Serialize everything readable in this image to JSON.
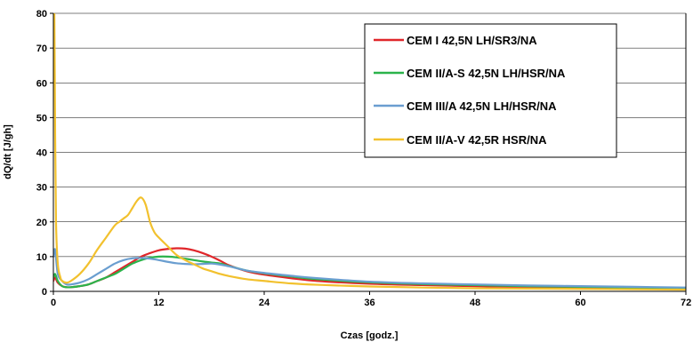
{
  "chart_data": {
    "type": "line",
    "xlabel": "Czas [godz.]",
    "ylabel": "dQ/dt [J/gh]",
    "xlim": [
      0,
      72
    ],
    "ylim": [
      0,
      80
    ],
    "xticks": [
      0,
      12,
      24,
      36,
      48,
      60,
      72
    ],
    "yticks": [
      0,
      10,
      20,
      30,
      40,
      50,
      60,
      70,
      80
    ],
    "grid": "horizontal",
    "legend_position": "top-right",
    "series": [
      {
        "name": "CEM I 42,5N LH/SR3/NA",
        "color": "#e0262a",
        "x": [
          0,
          0.2,
          0.5,
          1,
          1.5,
          2,
          3,
          4,
          5,
          6,
          7,
          8,
          9,
          10,
          11,
          12,
          13,
          14,
          15,
          16,
          17,
          18,
          19,
          20,
          22,
          24,
          27,
          30,
          36,
          42,
          48,
          54,
          60,
          66,
          72
        ],
        "y": [
          3,
          4,
          2.5,
          1.5,
          1.2,
          1.2,
          1.5,
          2,
          3,
          4,
          5.5,
          7,
          8.5,
          10,
          11,
          11.8,
          12.2,
          12.4,
          12.3,
          11.8,
          11,
          10,
          8.8,
          7.5,
          5.8,
          4.8,
          3.8,
          3,
          2.2,
          1.8,
          1.5,
          1.2,
          1,
          0.9,
          0.8
        ]
      },
      {
        "name": "CEM II/A-S 42,5N LH/HSR/NA",
        "color": "#2bb34b",
        "x": [
          0,
          0.2,
          0.5,
          1,
          1.5,
          2,
          3,
          4,
          5,
          6,
          7,
          8,
          9,
          10,
          11,
          12,
          13,
          14,
          15,
          16,
          17,
          18,
          19,
          20,
          22,
          24,
          27,
          30,
          36,
          42,
          48,
          54,
          60,
          66,
          72
        ],
        "y": [
          4,
          5,
          3,
          1.5,
          1.2,
          1.2,
          1.5,
          2,
          3,
          4,
          5,
          6.5,
          8,
          9,
          9.7,
          10,
          10,
          9.8,
          9.4,
          9,
          8.6,
          8.3,
          8,
          7.3,
          6,
          5.2,
          4.3,
          3.5,
          2.6,
          2.1,
          1.8,
          1.5,
          1.3,
          1.1,
          1
        ]
      },
      {
        "name": "CEM III/A 42,5N LH/HSR/NA",
        "color": "#6a9ed0",
        "x": [
          0,
          0.2,
          0.5,
          1,
          1.5,
          2,
          3,
          4,
          5,
          6,
          7,
          8,
          9,
          10,
          11,
          12,
          13,
          14,
          15,
          16,
          17,
          18,
          19,
          20,
          22,
          24,
          27,
          30,
          36,
          42,
          48,
          54,
          60,
          66,
          72
        ],
        "y": [
          10,
          12,
          5,
          3,
          2,
          2,
          2.5,
          3.5,
          5,
          6.5,
          8,
          9,
          9.5,
          9.6,
          9.4,
          9,
          8.5,
          8.1,
          7.9,
          7.8,
          7.9,
          8,
          7.7,
          7.2,
          6,
          5.3,
          4.5,
          3.8,
          2.8,
          2.3,
          2,
          1.7,
          1.5,
          1.3,
          1.1
        ]
      },
      {
        "name": "CEM II/A-V 42,5R HSR/NA",
        "color": "#f2c12e",
        "x": [
          0,
          0.1,
          0.2,
          0.3,
          0.5,
          0.8,
          1,
          1.5,
          2,
          3,
          4,
          5,
          6,
          7,
          7.5,
          8,
          8.5,
          9,
          9.5,
          10,
          10.5,
          11,
          11.5,
          12,
          13,
          14,
          15,
          16,
          17,
          18,
          19,
          20,
          22,
          24,
          27,
          30,
          36,
          42,
          48,
          54,
          60,
          66,
          72
        ],
        "y": [
          60,
          84,
          45,
          20,
          8,
          4,
          3,
          2.5,
          3,
          5,
          8,
          12,
          15.5,
          19,
          20,
          21,
          22,
          24,
          26,
          27,
          25,
          20,
          17,
          15.5,
          13,
          10.5,
          9,
          7.8,
          6.6,
          5.8,
          5,
          4.4,
          3.5,
          3,
          2.3,
          1.9,
          1.4,
          1.1,
          0.9,
          0.8,
          0.7,
          0.6,
          0.5
        ]
      }
    ]
  }
}
